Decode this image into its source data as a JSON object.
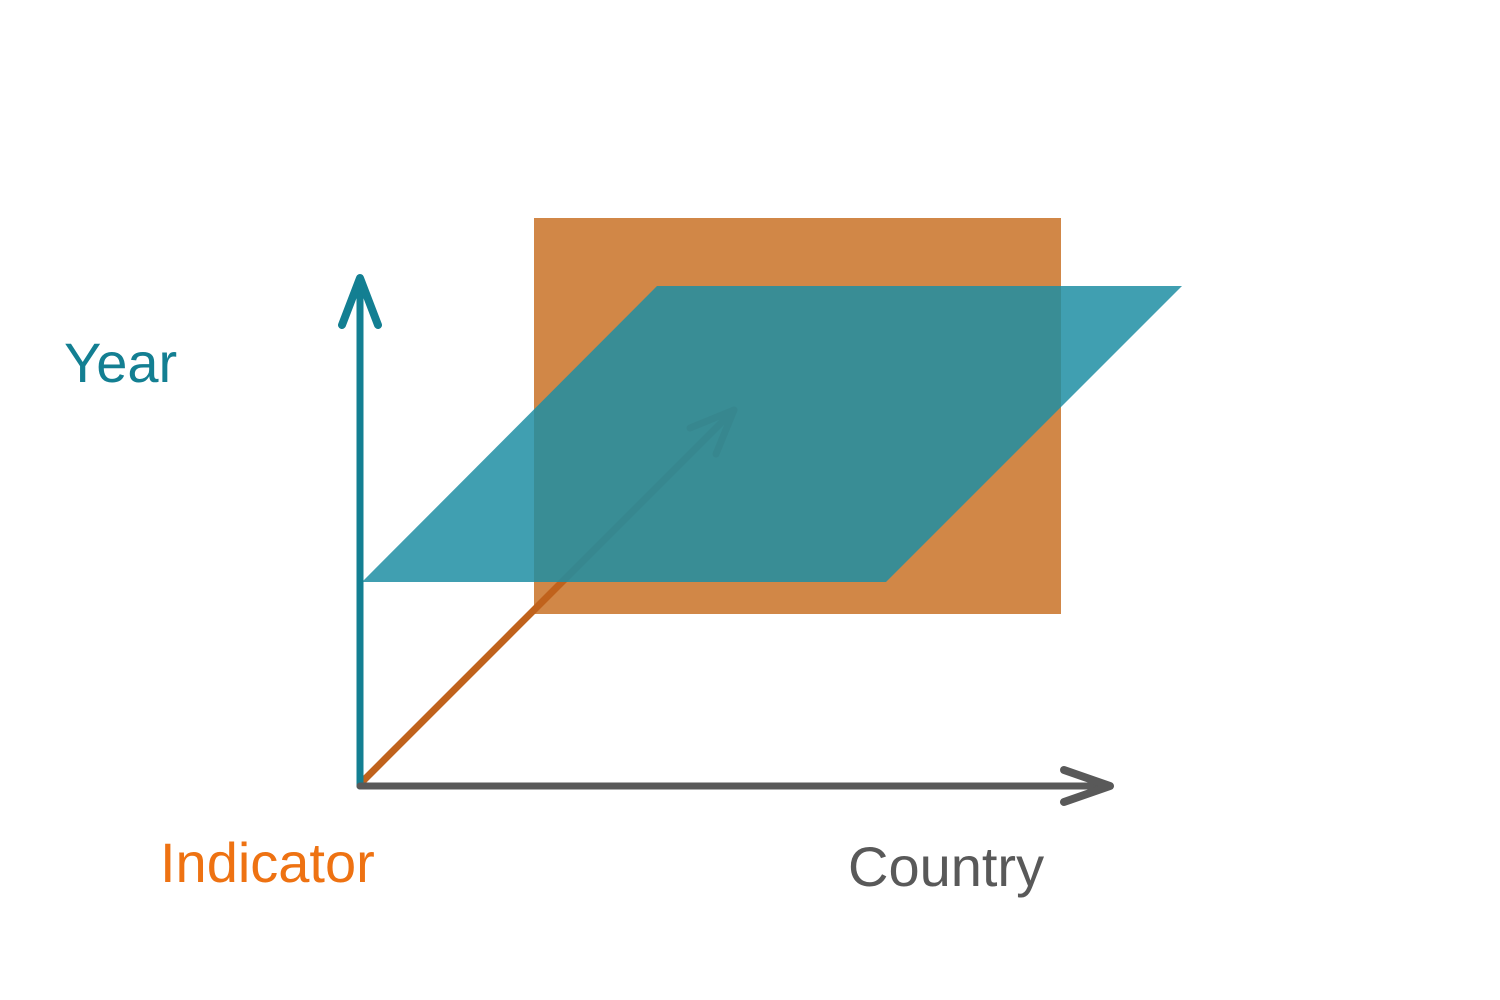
{
  "labels": {
    "year": "Year",
    "indicator": "Indicator",
    "country": "Country"
  },
  "colors": {
    "year": "#137f92",
    "indicator": "#ee7212",
    "country": "#595959",
    "indicator_arrow": "#c0621c",
    "orange_plane": "#cc7a33",
    "teal_plane": "#1f8ea3"
  }
}
